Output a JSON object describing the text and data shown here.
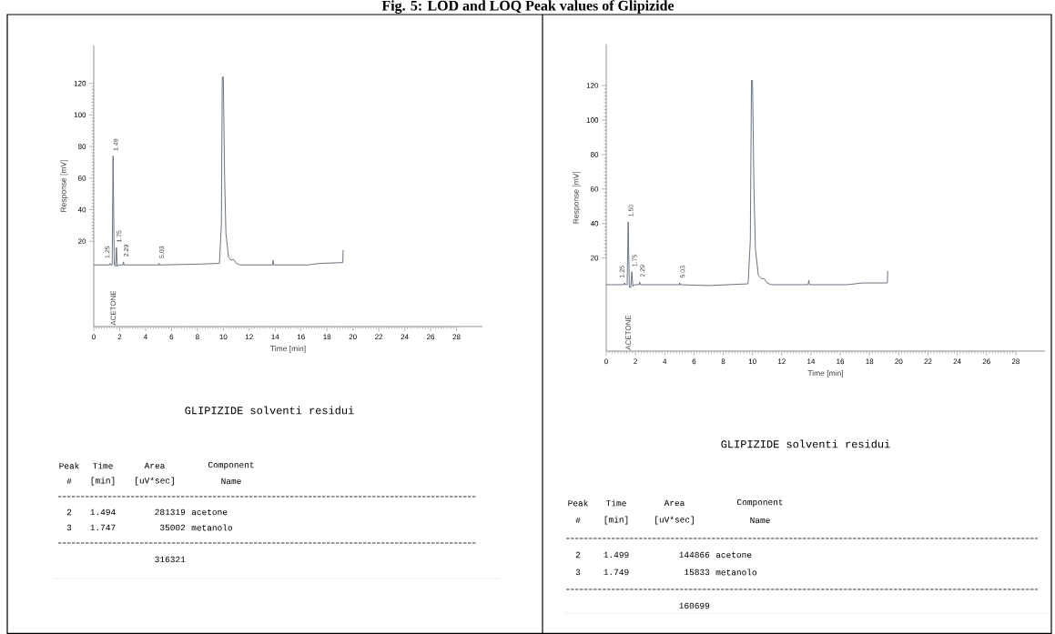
{
  "chart_data": [
    {
      "type": "line",
      "title": "Fig. 5: LOD and LOQ Peak values of Glipizide",
      "xlabel": "Time [min]",
      "ylabel": "Response [mV]",
      "x": [
        0,
        1.2,
        1.25,
        1.3,
        1.42,
        1.49,
        1.58,
        1.68,
        1.75,
        1.82,
        1.9,
        2.25,
        2.29,
        2.33,
        5.0,
        5.03,
        5.06,
        8,
        9.7,
        9.85,
        9.92,
        10.0,
        10.1,
        10.2,
        10.4,
        10.6,
        10.8,
        11.0,
        11.3,
        13.8,
        13.85,
        13.9,
        16.5,
        17.5,
        19.22,
        19.25
      ],
      "series": [
        {
          "color": "#5a6470",
          "values": [
            5,
            5,
            6,
            5,
            5,
            74,
            5,
            4,
            16,
            4,
            5,
            5,
            7,
            5,
            5,
            6,
            5,
            5.5,
            6,
            30,
            124,
            124,
            60,
            25,
            10,
            8,
            8.5,
            6,
            5,
            5,
            8,
            5,
            5,
            6,
            6.5,
            14.5
          ]
        }
      ],
      "xlim": [
        0,
        30
      ],
      "ylim": [
        -34,
        144
      ],
      "xticks": [
        0,
        2,
        4,
        6,
        8,
        10,
        12,
        14,
        16,
        18,
        20,
        22,
        24,
        26,
        28
      ],
      "yticks": [
        20,
        40,
        60,
        80,
        100,
        120
      ],
      "annotations": [
        "GLIPIZIDE solventi residui",
        "Peak",
        "Time",
        "Area",
        "Component",
        "#",
        "[min]",
        "[uV*sec]",
        "Name",
        "2",
        "1.494",
        "281319",
        "acetone",
        "3",
        "1.747",
        "35002",
        "metanolo",
        "316321",
        {
          "text": "1.25",
          "x": 1.25,
          "y": 6
        },
        {
          "text": "1.49",
          "x": 1.49,
          "y": 74
        },
        {
          "text": "1.75",
          "x": 1.75,
          "y": 16
        },
        {
          "text": "2.29",
          "x": 2.29,
          "y": 7
        },
        {
          "text": "5.03",
          "x": 5.03,
          "y": 6
        },
        "ACETONE"
      ]
    },
    {
      "type": "line",
      "xlabel": "Time [min]",
      "ylabel": "Response [mV]",
      "x": [
        0,
        1.2,
        1.25,
        1.3,
        1.43,
        1.5,
        1.58,
        1.68,
        1.75,
        1.82,
        1.9,
        2.25,
        2.29,
        2.33,
        5.0,
        5.03,
        5.06,
        7,
        9.7,
        9.85,
        9.93,
        10.0,
        10.1,
        10.2,
        10.4,
        10.6,
        10.8,
        11.0,
        11.3,
        13.8,
        13.85,
        13.9,
        16.5,
        17.5,
        19.22,
        19.25
      ],
      "series": [
        {
          "color": "#5a6470",
          "values": [
            4.5,
            4.5,
            5.5,
            4.5,
            4.5,
            41,
            3,
            3,
            12,
            3.5,
            4.5,
            4.5,
            6,
            4.5,
            4.5,
            5.5,
            4.5,
            4,
            5,
            30,
            123,
            123,
            60,
            25,
            10,
            8,
            8,
            5.5,
            4.5,
            4.5,
            7,
            4.5,
            4.5,
            5.5,
            5.5,
            12.5
          ]
        }
      ],
      "xlim": [
        0,
        30
      ],
      "ylim": [
        -34,
        144
      ],
      "xticks": [
        0,
        2,
        4,
        6,
        8,
        10,
        12,
        14,
        16,
        18,
        20,
        22,
        24,
        26,
        28
      ],
      "yticks": [
        20,
        40,
        60,
        80,
        100,
        120
      ],
      "annotations": [
        "GLIPIZIDE solventi residui",
        "Peak",
        "Time",
        "Area",
        "Component",
        "#",
        "[min]",
        "[uV*sec]",
        "Name",
        "2",
        "1.499",
        "144866",
        "acetone",
        "3",
        "1.749",
        "15833",
        "metanolo",
        "160699",
        {
          "text": "1.25",
          "x": 1.25,
          "y": 5.5
        },
        {
          "text": "1.50",
          "x": 1.5,
          "y": 41
        },
        {
          "text": "1.75",
          "x": 1.75,
          "y": 12
        },
        {
          "text": "2.29",
          "x": 2.29,
          "y": 6
        },
        {
          "text": "5.03",
          "x": 5.03,
          "y": 5.5
        },
        "ACETONE"
      ]
    }
  ]
}
